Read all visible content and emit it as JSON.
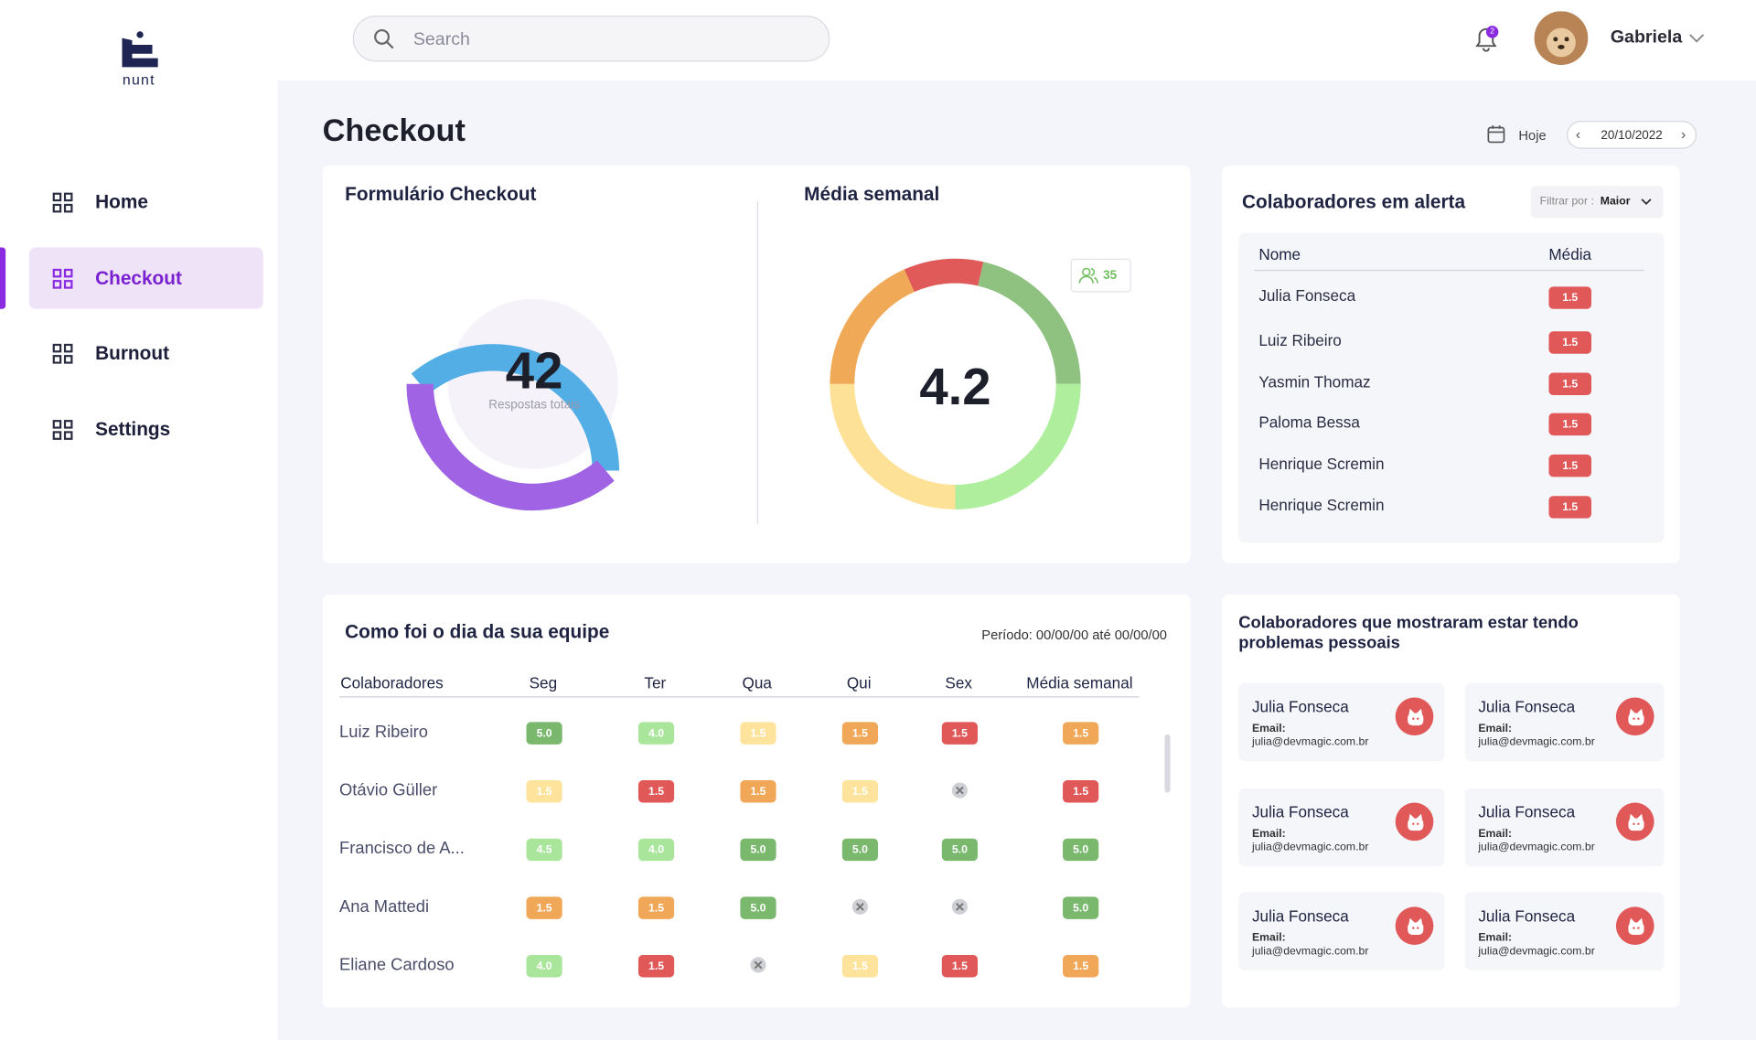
{
  "brand": "nunt",
  "search_placeholder": "Search",
  "notifications": 2,
  "user": "Gabriela",
  "nav": [
    "Home",
    "Checkout",
    "Burnout",
    "Settings"
  ],
  "page_title": "Checkout",
  "date": {
    "label": "Hoje",
    "value": "20/10/2022"
  },
  "form_card": {
    "title": "Formulário Checkout",
    "total": 42,
    "total_label": "Respostas totais"
  },
  "weekly_card": {
    "title": "Média semanal",
    "value": 4.2,
    "participants": 35
  },
  "alerts": {
    "title": "Colaboradores em alerta",
    "filter_label": "Filtrar por :",
    "filter_value": "Maior",
    "columns": [
      "Nome",
      "Média"
    ],
    "rows": [
      [
        "Julia Fonseca",
        "1.5"
      ],
      [
        "Luiz Ribeiro",
        "1.5"
      ],
      [
        "Yasmin Thomaz",
        "1.5"
      ],
      [
        "Paloma Bessa",
        "1.5"
      ],
      [
        "Henrique Scremin",
        "1.5"
      ],
      [
        "Henrique Scremin",
        "1.5"
      ]
    ]
  },
  "team": {
    "title": "Como foi o dia da sua equipe",
    "period": "Período: 00/00/00 até 00/00/00",
    "columns": [
      "Colaboradores",
      "Seg",
      "Ter",
      "Qua",
      "Qui",
      "Sex",
      "Média semanal"
    ],
    "rows": [
      {
        "name": "Luiz Ribeiro",
        "scores": [
          "5.0",
          "4.0",
          "1.5",
          "1.5",
          "1.5",
          "1.5"
        ],
        "levels": [
          "green",
          "lightgreen",
          "yellow",
          "orange",
          "red",
          "orange"
        ]
      },
      {
        "name": "Otávio Güller",
        "scores": [
          "1.5",
          "1.5",
          "1.5",
          "1.5",
          null,
          "1.5"
        ],
        "levels": [
          "yellow",
          "red",
          "orange",
          "yellow",
          null,
          "red"
        ]
      },
      {
        "name": "Francisco de A...",
        "scores": [
          "4.5",
          "4.0",
          "5.0",
          "5.0",
          "5.0",
          "5.0"
        ],
        "levels": [
          "lightgreen",
          "lightgreen",
          "green",
          "green",
          "green",
          "green"
        ]
      },
      {
        "name": "Ana Mattedi",
        "scores": [
          "1.5",
          "1.5",
          "5.0",
          null,
          null,
          "5.0"
        ],
        "levels": [
          "orange",
          "orange",
          "green",
          null,
          null,
          "green"
        ]
      },
      {
        "name": "Eliane Cardoso",
        "scores": [
          "4.0",
          "1.5",
          null,
          "1.5",
          "1.5",
          "1.5"
        ],
        "levels": [
          "lightgreen",
          "red",
          null,
          "yellow",
          "red",
          "orange"
        ]
      }
    ]
  },
  "personal": {
    "title": "Colaboradores que mostraram estar tendo problemas pessoais",
    "email_label": "Email:",
    "people": [
      {
        "name": "Julia Fonseca",
        "email": "julia@devmagic.com.br"
      },
      {
        "name": "Julia Fonseca",
        "email": "julia@devmagic.com.br"
      },
      {
        "name": "Julia Fonseca",
        "email": "julia@devmagic.com.br"
      },
      {
        "name": "Julia Fonseca",
        "email": "julia@devmagic.com.br"
      },
      {
        "name": "Julia Fonseca",
        "email": "julia@devmagic.com.br"
      },
      {
        "name": "Julia Fonseca",
        "email": "julia@devmagic.com.br"
      }
    ]
  }
}
